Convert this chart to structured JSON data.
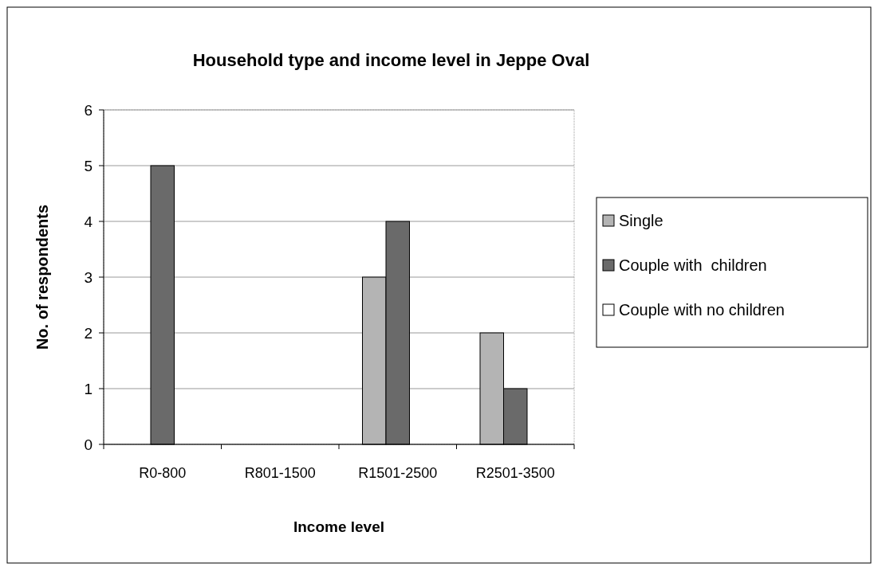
{
  "chart_data": {
    "type": "bar",
    "title": "Household type and income level in Jeppe Oval",
    "xlabel": "Income level",
    "ylabel": "No. of respondents",
    "categories": [
      "R0-800",
      "R801-1500",
      "R1501-2500",
      "R2501-3500"
    ],
    "series": [
      {
        "name": "Single",
        "color": "#b4b4b4",
        "values": [
          0,
          0,
          3,
          2
        ]
      },
      {
        "name": "Couple with  children",
        "color": "#6a6a6a",
        "values": [
          5,
          0,
          4,
          1
        ]
      },
      {
        "name": "Couple with no children",
        "color": "#ffffff",
        "values": [
          0,
          0,
          0,
          0
        ]
      }
    ],
    "ylim": [
      0,
      6
    ],
    "yticks": [
      0,
      1,
      2,
      3,
      4,
      5,
      6
    ],
    "grid": "y",
    "legend": "right"
  }
}
